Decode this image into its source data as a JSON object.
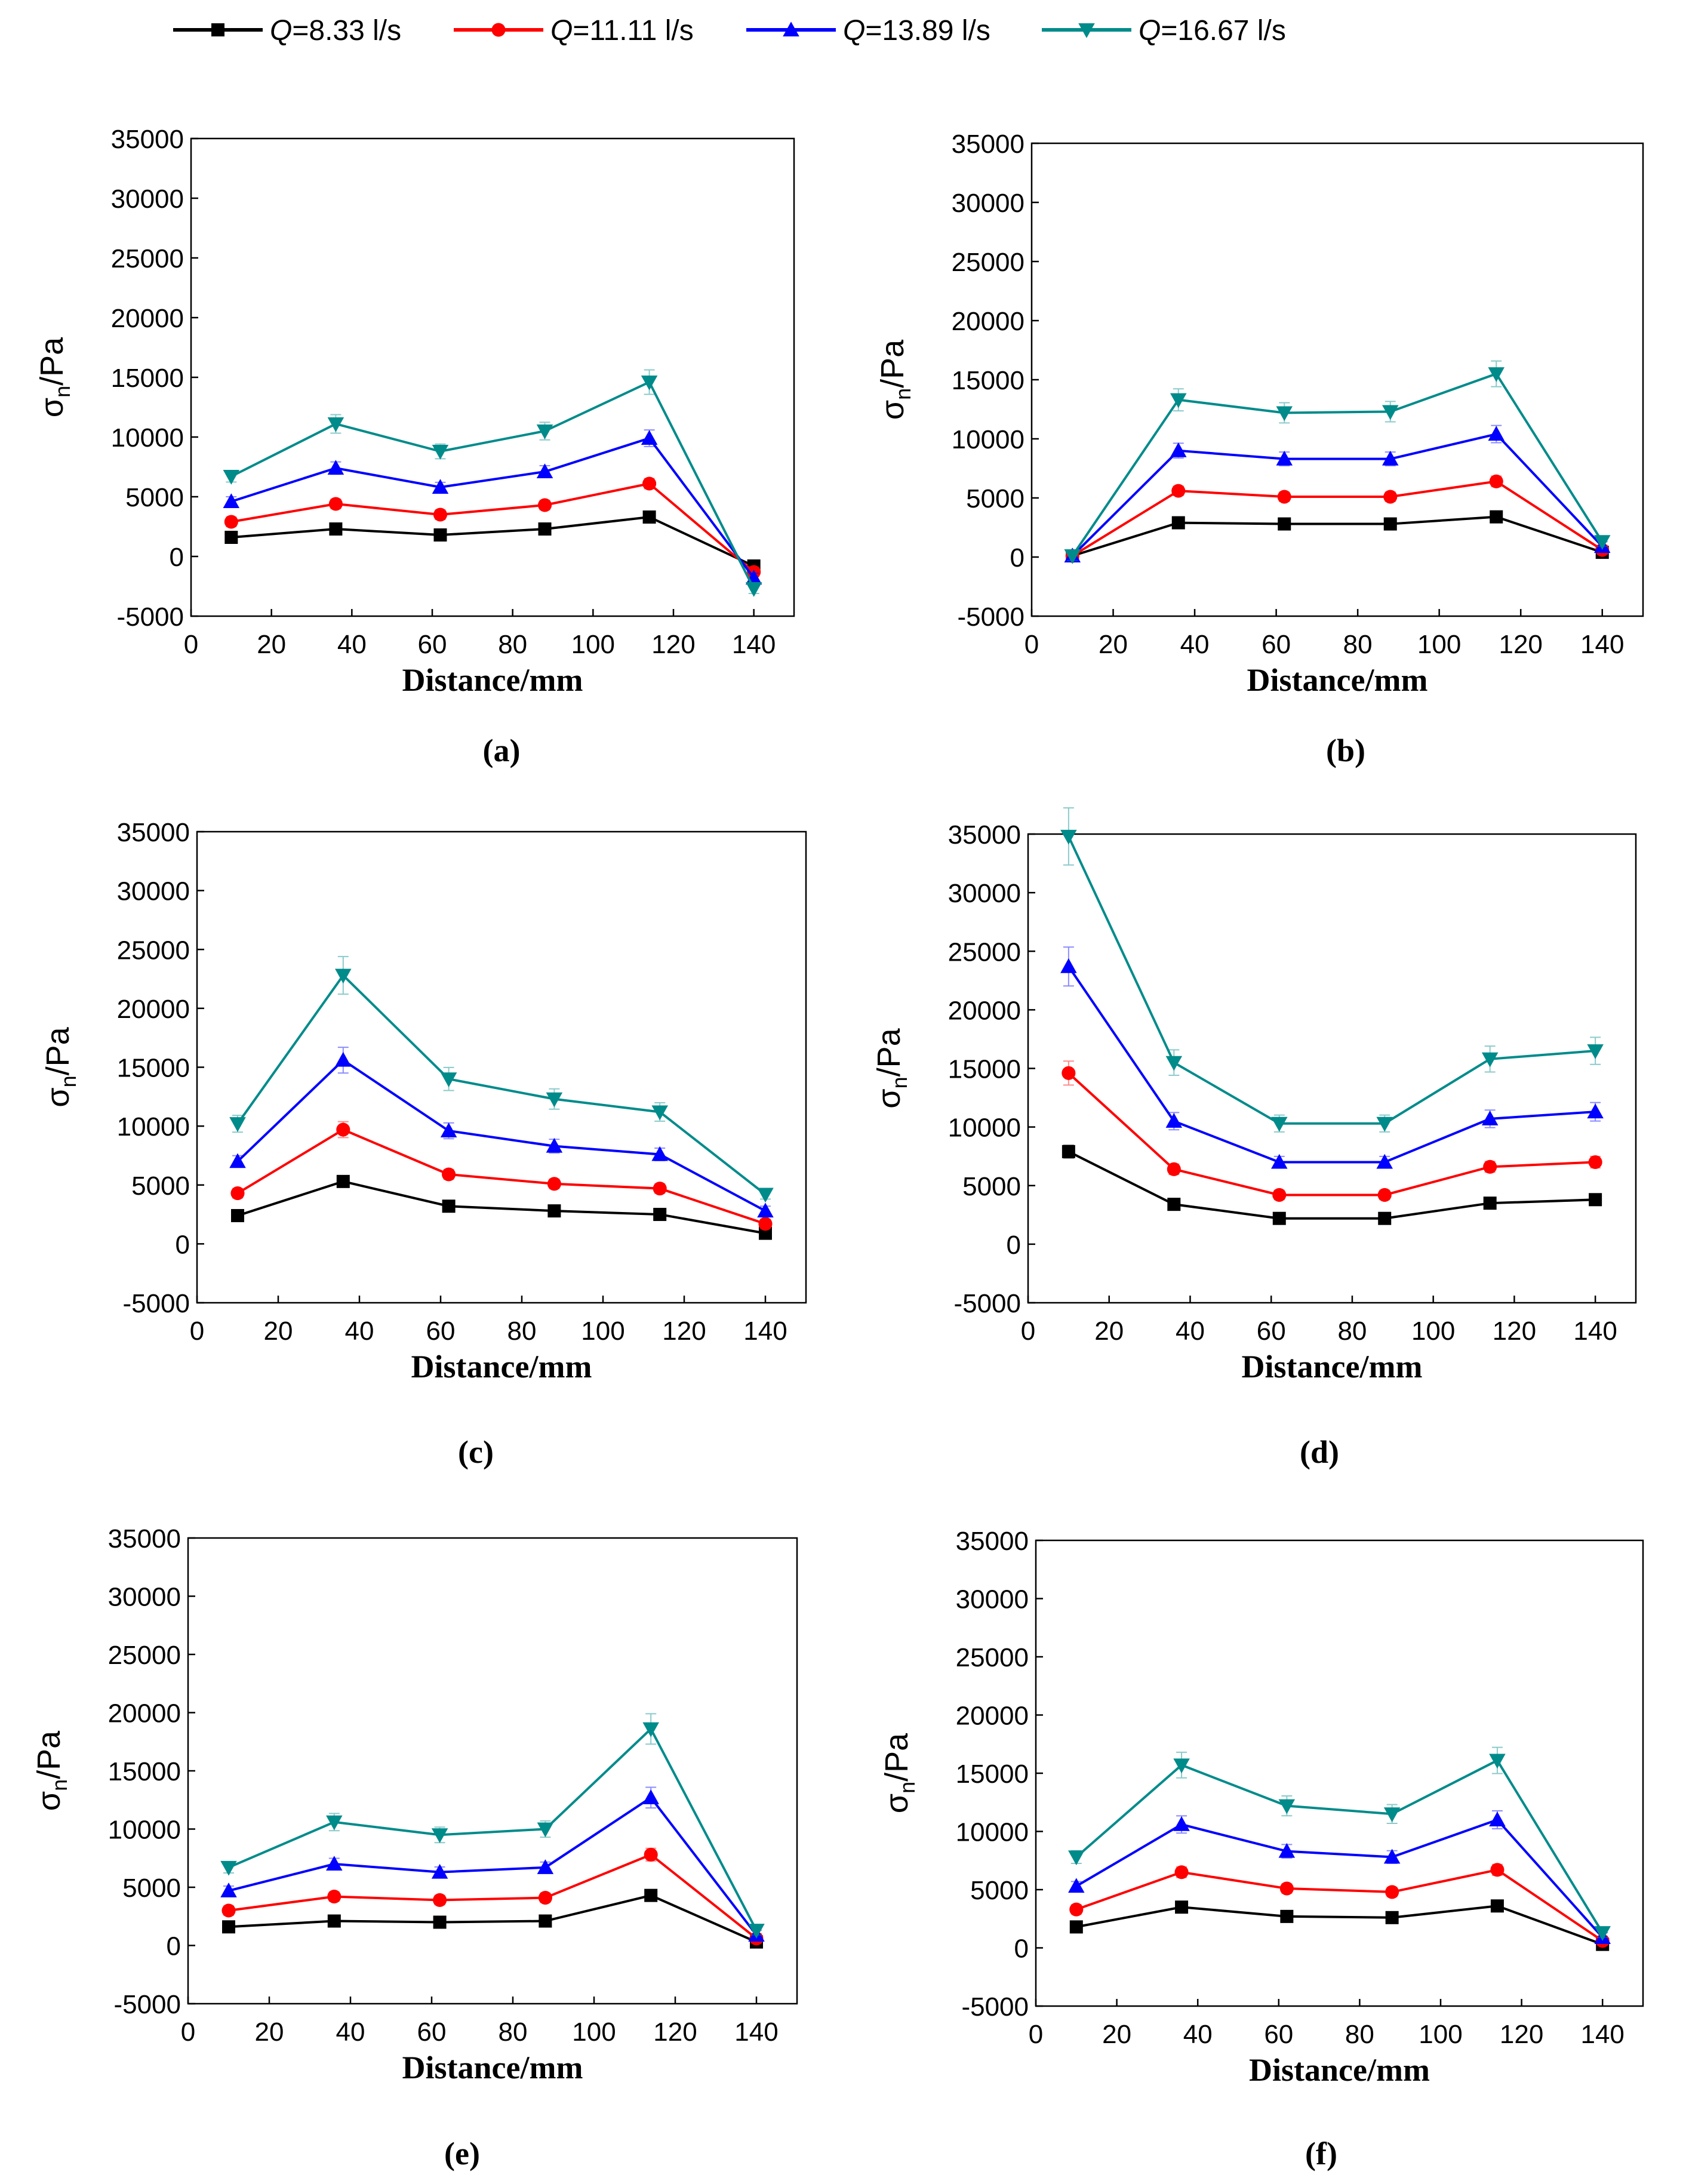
{
  "legend": {
    "entries": [
      {
        "prefix": "Q",
        "text": "=8.33 l/s",
        "color": "#000000",
        "marker": "square"
      },
      {
        "prefix": "Q",
        "text": "=11.11 l/s",
        "color": "#ff0000",
        "marker": "circle"
      },
      {
        "prefix": "Q",
        "text": "=13.89 l/s",
        "color": "#0000ff",
        "marker": "triangle-up"
      },
      {
        "prefix": "Q",
        "text": "=16.67 l/s",
        "color": "#008b8b",
        "marker": "triangle-down"
      }
    ]
  },
  "chart_data": [
    {
      "type": "line",
      "panel_label": "(a)",
      "xlabel": "Distance/mm",
      "ylabel_main": "σ",
      "ylabel_sub": "n",
      "ylabel_unit": "/Pa",
      "xlim": [
        0,
        150
      ],
      "ylim": [
        -5000,
        35000
      ],
      "xticks": [
        0,
        20,
        40,
        60,
        80,
        100,
        120,
        140
      ],
      "yticks": [
        -5000,
        0,
        5000,
        10000,
        15000,
        20000,
        25000,
        30000,
        35000
      ],
      "x": [
        10,
        36,
        62,
        88,
        114,
        140
      ],
      "series": [
        {
          "name": "Q=8.33 l/s",
          "values": [
            1600,
            2300,
            1800,
            2300,
            3300,
            -800
          ]
        },
        {
          "name": "Q=11.11 l/s",
          "values": [
            2900,
            4400,
            3500,
            4300,
            6100,
            -1300
          ]
        },
        {
          "name": "Q=13.89 l/s",
          "values": [
            4600,
            7400,
            5800,
            7100,
            9900,
            -1800
          ]
        },
        {
          "name": "Q=16.67 l/s",
          "values": [
            6700,
            11100,
            8800,
            10500,
            14600,
            -2700
          ]
        }
      ]
    },
    {
      "type": "line",
      "panel_label": "(b)",
      "xlabel": "Distance/mm",
      "ylabel_main": "σ",
      "ylabel_sub": "n",
      "ylabel_unit": "/Pa",
      "xlim": [
        0,
        150
      ],
      "ylim": [
        -5000,
        35000
      ],
      "xticks": [
        0,
        20,
        40,
        60,
        80,
        100,
        120,
        140
      ],
      "yticks": [
        -5000,
        0,
        5000,
        10000,
        15000,
        20000,
        25000,
        30000,
        35000
      ],
      "x": [
        10,
        36,
        62,
        88,
        114,
        140
      ],
      "series": [
        {
          "name": "Q=8.33 l/s",
          "values": [
            100,
            2900,
            2800,
            2800,
            3400,
            400
          ]
        },
        {
          "name": "Q=11.11 l/s",
          "values": [
            100,
            5600,
            5100,
            5100,
            6400,
            600
          ]
        },
        {
          "name": "Q=13.89 l/s",
          "values": [
            100,
            9000,
            8300,
            8300,
            10400,
            900
          ]
        },
        {
          "name": "Q=16.67 l/s",
          "values": [
            100,
            13300,
            12200,
            12300,
            15500,
            1300
          ]
        }
      ]
    },
    {
      "type": "line",
      "panel_label": "(c)",
      "xlabel": "Distance/mm",
      "ylabel_main": "σ",
      "ylabel_sub": "n",
      "ylabel_unit": "/Pa",
      "xlim": [
        0,
        150
      ],
      "ylim": [
        -5000,
        35000
      ],
      "xticks": [
        0,
        20,
        40,
        60,
        80,
        100,
        120,
        140
      ],
      "yticks": [
        -5000,
        0,
        5000,
        10000,
        15000,
        20000,
        25000,
        30000,
        35000
      ],
      "x": [
        10,
        36,
        62,
        88,
        114,
        140
      ],
      "series": [
        {
          "name": "Q=8.33 l/s",
          "values": [
            2400,
            5300,
            3200,
            2800,
            2500,
            900
          ]
        },
        {
          "name": "Q=11.11 l/s",
          "values": [
            4300,
            9700,
            5900,
            5100,
            4700,
            1700
          ]
        },
        {
          "name": "Q=13.89 l/s",
          "values": [
            7000,
            15600,
            9600,
            8300,
            7600,
            2800
          ]
        },
        {
          "name": "Q=16.67 l/s",
          "values": [
            10200,
            22800,
            14000,
            12300,
            11200,
            4200
          ]
        }
      ]
    },
    {
      "type": "line",
      "panel_label": "(d)",
      "xlabel": "Distance/mm",
      "ylabel_main": "σ",
      "ylabel_sub": "n",
      "ylabel_unit": "/Pa",
      "xlim": [
        0,
        150
      ],
      "ylim": [
        -5000,
        35000
      ],
      "xticks": [
        0,
        20,
        40,
        60,
        80,
        100,
        120,
        140
      ],
      "yticks": [
        -5000,
        0,
        5000,
        10000,
        15000,
        20000,
        25000,
        30000,
        35000
      ],
      "x": [
        10,
        36,
        62,
        88,
        114,
        140
      ],
      "series": [
        {
          "name": "Q=8.33 l/s",
          "values": [
            7900,
            3400,
            2200,
            2200,
            3500,
            3800
          ]
        },
        {
          "name": "Q=11.11 l/s",
          "values": [
            14600,
            6400,
            4200,
            4200,
            6600,
            7000
          ]
        },
        {
          "name": "Q=13.89 l/s",
          "values": [
            23700,
            10500,
            7000,
            7000,
            10700,
            11300
          ]
        },
        {
          "name": "Q=16.67 l/s",
          "values": [
            34800,
            15500,
            10300,
            10300,
            15800,
            16500
          ]
        }
      ]
    },
    {
      "type": "line",
      "panel_label": "(e)",
      "xlabel": "Distance/mm",
      "ylabel_main": "σ",
      "ylabel_sub": "n",
      "ylabel_unit": "/Pa",
      "xlim": [
        0,
        150
      ],
      "ylim": [
        -5000,
        35000
      ],
      "xticks": [
        0,
        20,
        40,
        60,
        80,
        100,
        120,
        140
      ],
      "yticks": [
        -5000,
        0,
        5000,
        10000,
        15000,
        20000,
        25000,
        30000,
        35000
      ],
      "x": [
        10,
        36,
        62,
        88,
        114,
        140
      ],
      "series": [
        {
          "name": "Q=8.33 l/s",
          "values": [
            1600,
            2100,
            2000,
            2100,
            4300,
            300
          ]
        },
        {
          "name": "Q=11.11 l/s",
          "values": [
            3000,
            4200,
            3900,
            4100,
            7800,
            600
          ]
        },
        {
          "name": "Q=13.89 l/s",
          "values": [
            4700,
            7000,
            6300,
            6700,
            12700,
            900
          ]
        },
        {
          "name": "Q=16.67 l/s",
          "values": [
            6700,
            10600,
            9500,
            10000,
            18600,
            1300
          ]
        }
      ]
    },
    {
      "type": "line",
      "panel_label": "(f)",
      "xlabel": "Distance/mm",
      "ylabel_main": "σ",
      "ylabel_sub": "n",
      "ylabel_unit": "/Pa",
      "xlim": [
        0,
        150
      ],
      "ylim": [
        -5000,
        35000
      ],
      "xticks": [
        0,
        20,
        40,
        60,
        80,
        100,
        120,
        140
      ],
      "yticks": [
        -5000,
        0,
        5000,
        10000,
        15000,
        20000,
        25000,
        30000,
        35000
      ],
      "x": [
        10,
        36,
        62,
        88,
        114,
        140
      ],
      "series": [
        {
          "name": "Q=8.33 l/s",
          "values": [
            1800,
            3500,
            2700,
            2600,
            3600,
            300
          ]
        },
        {
          "name": "Q=11.11 l/s",
          "values": [
            3300,
            6500,
            5100,
            4800,
            6700,
            600
          ]
        },
        {
          "name": "Q=13.89 l/s",
          "values": [
            5300,
            10600,
            8300,
            7800,
            11000,
            900
          ]
        },
        {
          "name": "Q=16.67 l/s",
          "values": [
            7800,
            15700,
            12200,
            11500,
            16100,
            1300
          ]
        }
      ]
    }
  ]
}
